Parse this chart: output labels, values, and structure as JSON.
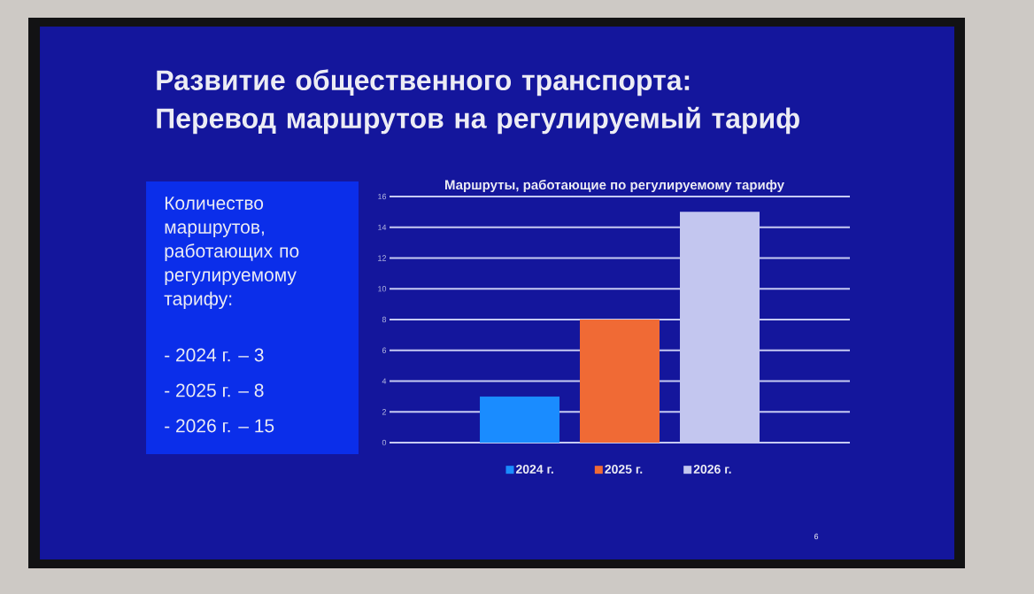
{
  "chart_data": {
    "type": "bar",
    "title": "Развитие общественного транспорта: Перевод маршрутов на регулируемый тариф",
    "subtitle": "Маршруты, работающие по регулируемому тарифу",
    "categories": [
      null
    ],
    "series": [
      {
        "name": "2024 г.",
        "color": "#1a8cff",
        "values": [
          3
        ]
      },
      {
        "name": "2025 г.",
        "color": "#f06a35",
        "values": [
          8
        ]
      },
      {
        "name": "2026 г.",
        "color": "#c3c6ef",
        "values": [
          15
        ]
      }
    ],
    "ylim": [
      0,
      16
    ],
    "yticks": [
      0,
      2,
      4,
      6,
      8,
      10,
      12,
      14,
      16
    ],
    "grid": "y",
    "legend": "bottom",
    "annotations": [
      "Количество маршрутов, работающих по регулируемому тарифу:",
      "- 2024 г. – 3",
      "- 2025 г. – 8",
      "- 2026 г. – 15",
      "6"
    ]
  }
}
